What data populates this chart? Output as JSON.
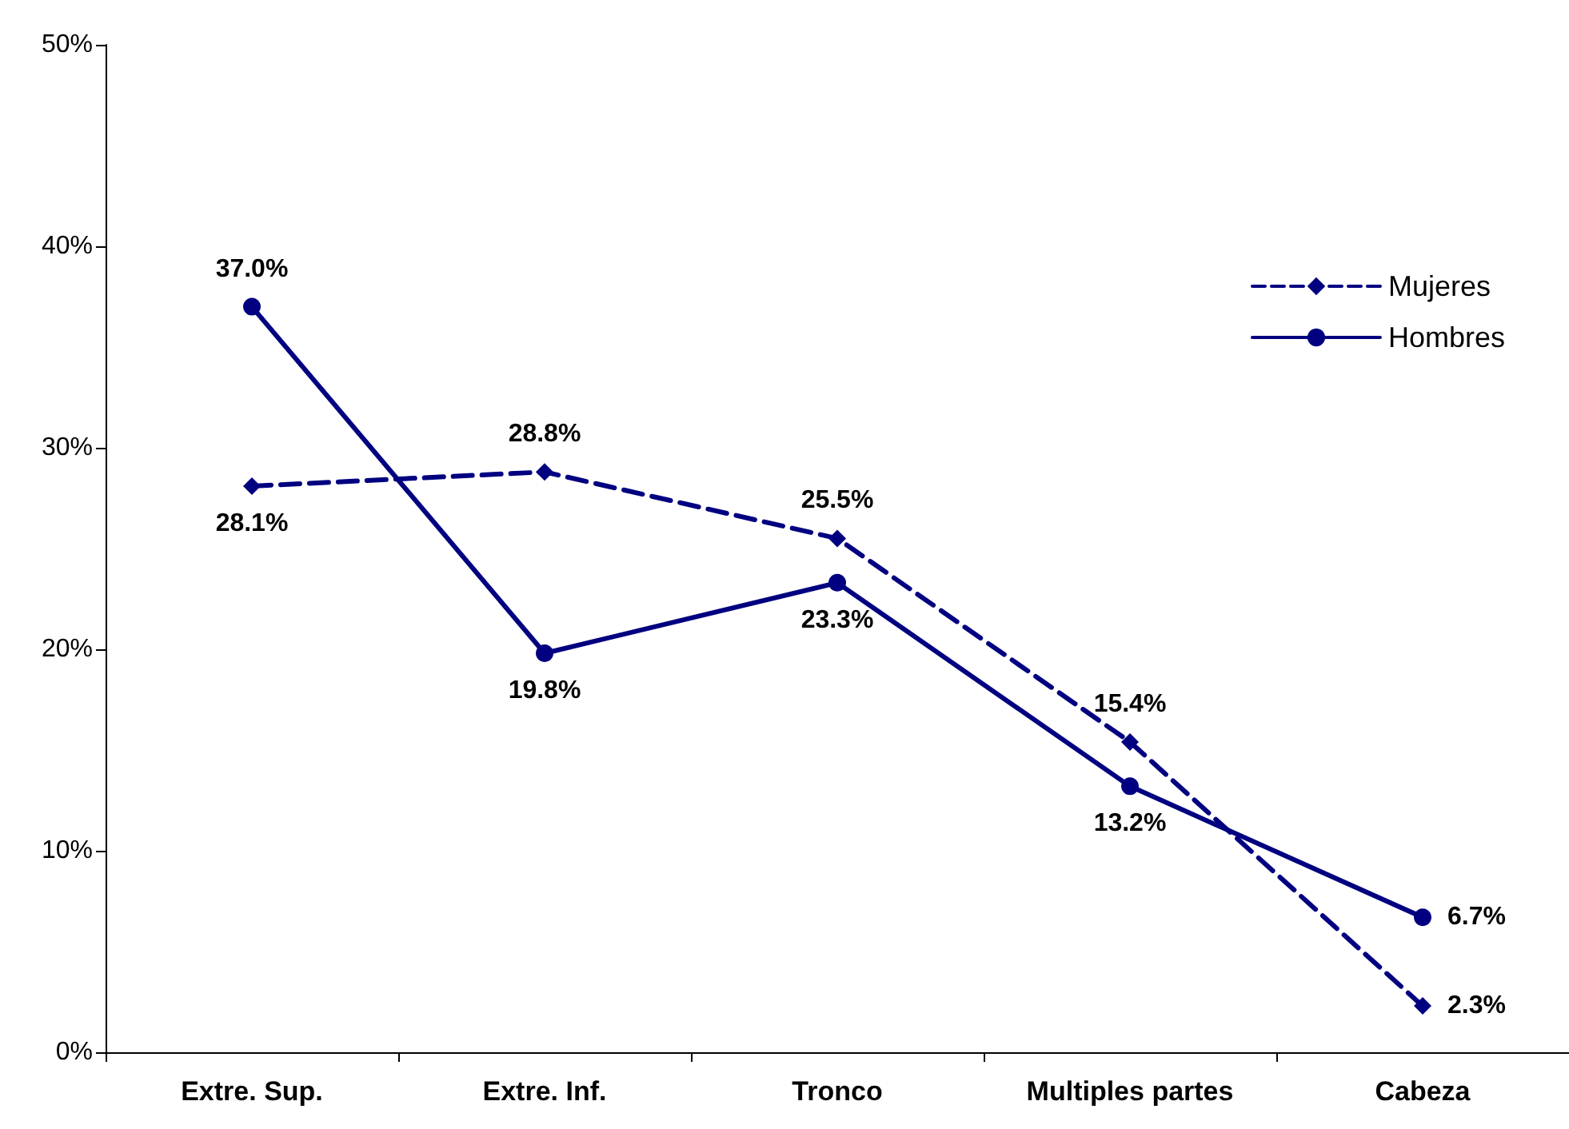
{
  "chart_data": {
    "type": "line",
    "categories": [
      "Extre. Sup.",
      "Extre. Inf.",
      "Tronco",
      "Multiples partes",
      "Cabeza"
    ],
    "series": [
      {
        "name": "Mujeres",
        "color": "#000080",
        "line_style": "dashed",
        "marker": "diamond",
        "values": [
          28.1,
          28.8,
          25.5,
          15.4,
          2.3
        ],
        "value_labels": [
          "28.1%",
          "28.8%",
          "25.5%",
          "15.4%",
          "2.3%"
        ]
      },
      {
        "name": "Hombres",
        "color": "#000080",
        "line_style": "solid",
        "marker": "circle",
        "values": [
          37.0,
          19.8,
          23.3,
          13.2,
          6.7
        ],
        "value_labels": [
          "37.0%",
          "19.8%",
          "23.3%",
          "13.2%",
          "6.7%"
        ]
      }
    ],
    "ylim": [
      0,
      50
    ],
    "yticks": [
      {
        "value": 0,
        "label": "0%"
      },
      {
        "value": 10,
        "label": "10%"
      },
      {
        "value": 20,
        "label": "20%"
      },
      {
        "value": 30,
        "label": "30%"
      },
      {
        "value": 40,
        "label": "40%"
      },
      {
        "value": 50,
        "label": "50%"
      }
    ],
    "grid": false,
    "legend": "top right"
  }
}
